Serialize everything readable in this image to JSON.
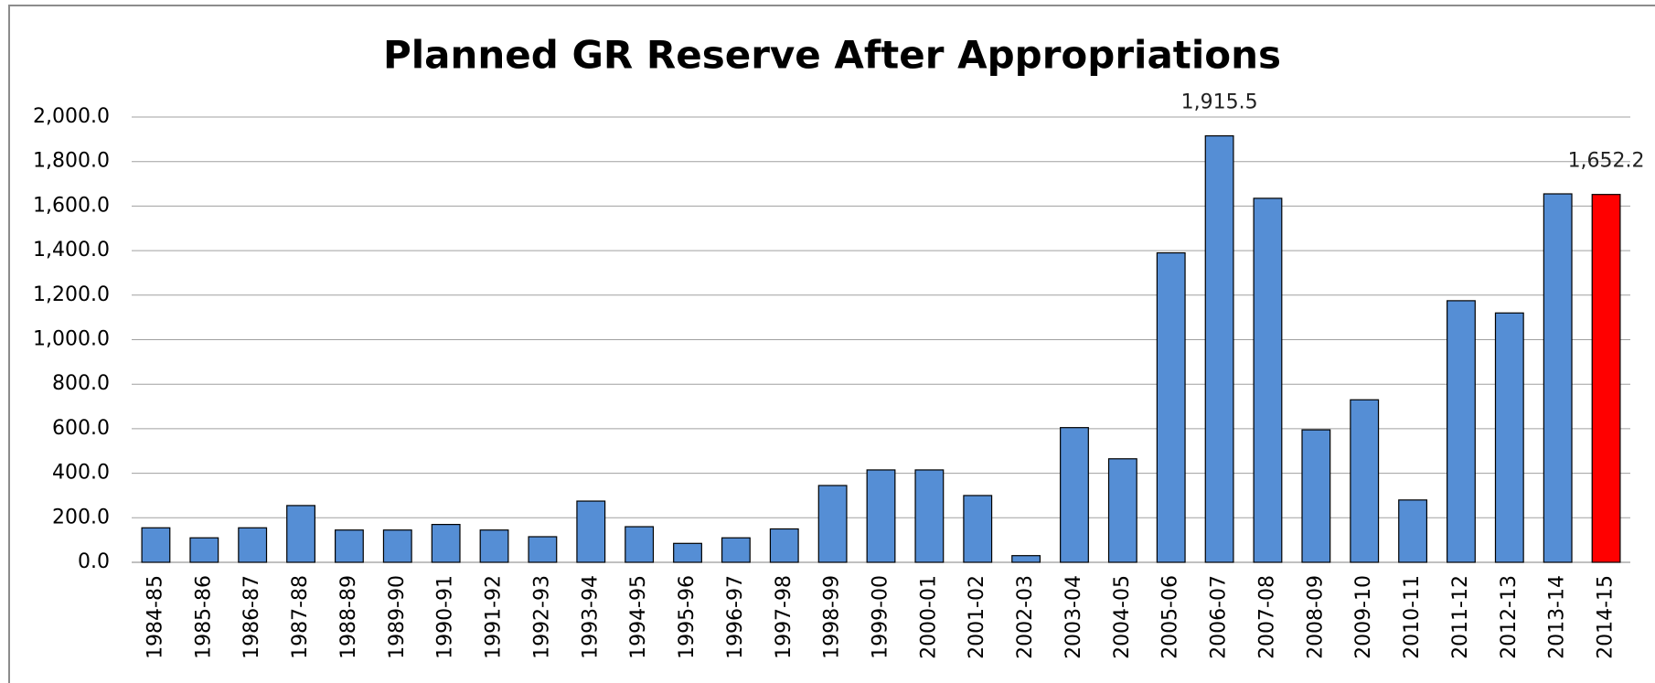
{
  "chart_data": {
    "type": "bar",
    "title": "Planned GR Reserve After Appropriations",
    "categories": [
      "1984-85",
      "1985-86",
      "1986-87",
      "1987-88",
      "1988-89",
      "1989-90",
      "1990-91",
      "1991-92",
      "1992-93",
      "1993-94",
      "1994-95",
      "1995-96",
      "1996-97",
      "1997-98",
      "1998-99",
      "1999-00",
      "2000-01",
      "2001-02",
      "2002-03",
      "2003-04",
      "2004-05",
      "2005-06",
      "2006-07",
      "2007-08",
      "2008-09",
      "2009-10",
      "2010-11",
      "2011-12",
      "2012-13",
      "2013-14",
      "2014-15"
    ],
    "values": [
      155,
      110,
      155,
      255,
      145,
      145,
      170,
      145,
      115,
      275,
      160,
      85,
      110,
      150,
      345,
      415,
      415,
      300,
      30,
      605,
      465,
      1390,
      1915.5,
      1635,
      595,
      730,
      280,
      1175,
      1120,
      1655,
      1652.2
    ],
    "value_labels": [
      null,
      null,
      null,
      null,
      null,
      null,
      null,
      null,
      null,
      null,
      null,
      null,
      null,
      null,
      null,
      null,
      null,
      null,
      null,
      null,
      null,
      null,
      "1,915.5",
      null,
      null,
      null,
      null,
      null,
      null,
      null,
      "1,652.2"
    ],
    "colors": [
      "#558ed5",
      "#558ed5",
      "#558ed5",
      "#558ed5",
      "#558ed5",
      "#558ed5",
      "#558ed5",
      "#558ed5",
      "#558ed5",
      "#558ed5",
      "#558ed5",
      "#558ed5",
      "#558ed5",
      "#558ed5",
      "#558ed5",
      "#558ed5",
      "#558ed5",
      "#558ed5",
      "#558ed5",
      "#558ed5",
      "#558ed5",
      "#558ed5",
      "#558ed5",
      "#558ed5",
      "#558ed5",
      "#558ed5",
      "#558ed5",
      "#558ed5",
      "#558ed5",
      "#558ed5",
      "#ff0000"
    ],
    "ylim": [
      0,
      2000
    ],
    "yticks": [
      {
        "value": 0,
        "label": "0.0"
      },
      {
        "value": 200,
        "label": "200.0"
      },
      {
        "value": 400,
        "label": "400.0"
      },
      {
        "value": 600,
        "label": "600.0"
      },
      {
        "value": 800,
        "label": "800.0"
      },
      {
        "value": 1000,
        "label": "1,000.0"
      },
      {
        "value": 1200,
        "label": "1,200.0"
      },
      {
        "value": 1400,
        "label": "1,400.0"
      },
      {
        "value": 1600,
        "label": "1,600.0"
      },
      {
        "value": 1800,
        "label": "1,800.0"
      },
      {
        "value": 2000,
        "label": "2,000.0"
      }
    ],
    "grid": true
  }
}
